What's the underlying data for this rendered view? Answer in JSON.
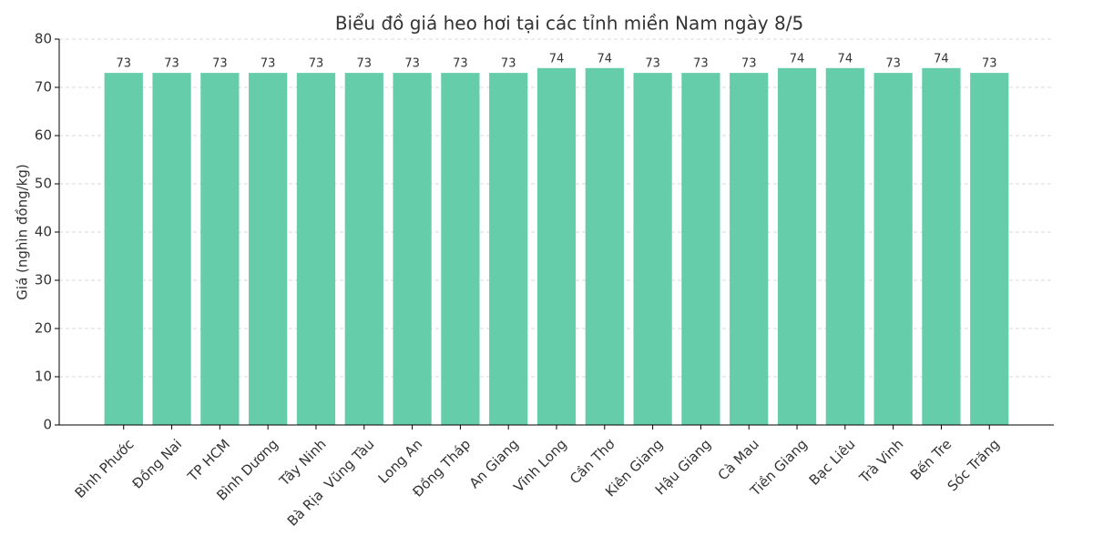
{
  "chart_data": {
    "type": "bar",
    "title": "Biểu đồ giá heo hơi tại các tỉnh miền Nam ngày 8/5",
    "y_label": "Giá (nghìn đồng/kg)",
    "categories": [
      "Bình Phước",
      "Đồng Nai",
      "TP HCM",
      "Bình Dương",
      "Tây Ninh",
      "Bà Rịa  Vũng Tàu",
      "Long An",
      "Đồng Tháp",
      "An Giang",
      "Vĩnh Long",
      "Cần Thơ",
      "Kiên Giang",
      "Hậu Giang",
      "Cà Mau",
      "Tiền Giang",
      "Bạc Liêu",
      "Trà Vinh",
      "Bến Tre",
      "Sóc Trăng"
    ],
    "values": [
      73,
      73,
      73,
      73,
      73,
      73,
      73,
      73,
      73,
      74,
      74,
      73,
      73,
      73,
      74,
      74,
      73,
      74,
      73
    ],
    "color": "#66cdaa",
    "ylim": [
      0,
      80
    ],
    "yticks": [
      0,
      10,
      20,
      30,
      40,
      50,
      60,
      70,
      80
    ],
    "grid": true
  }
}
